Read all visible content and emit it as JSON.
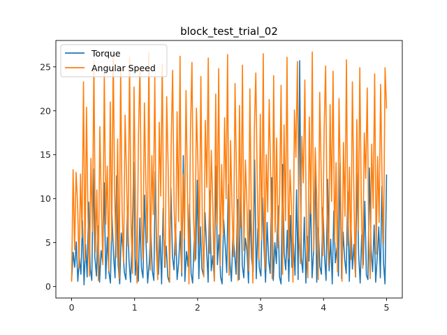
{
  "chart_data": {
    "type": "line",
    "title": "block_test_trial_02",
    "xlabel": "",
    "ylabel": "",
    "xlim": [
      -0.25,
      5.25
    ],
    "ylim": [
      -1.3,
      28.0
    ],
    "x_ticks": [
      0,
      1,
      2,
      3,
      4,
      5
    ],
    "y_ticks": [
      0,
      5,
      10,
      15,
      20,
      25
    ],
    "grid": false,
    "legend_position": "top-left",
    "x_start": 0,
    "x_end": 5,
    "series": [
      {
        "name": "Torque",
        "color": "#1f77b4",
        "values": [
          0.8,
          3.9,
          2.2,
          5.1,
          0.6,
          3.2,
          1.4,
          7.5,
          0.2,
          4.8,
          1.1,
          9.6,
          2.0,
          0.7,
          13.4,
          3.3,
          1.2,
          6.9,
          0.5,
          4.1,
          2.8,
          11.8,
          0.9,
          5.6,
          1.7,
          0.4,
          8.2,
          3.6,
          1.0,
          12.6,
          2.4,
          0.3,
          6.1,
          4.4,
          1.6,
          0.8,
          9.1,
          2.9,
          0.5,
          5.3,
          14.2,
          1.3,
          3.7,
          0.6,
          7.8,
          2.1,
          1.0,
          10.4,
          4.9,
          0.4,
          2.6,
          6.5,
          1.8,
          0.7,
          13.1,
          3.0,
          1.4,
          5.8,
          0.3,
          8.9,
          2.2,
          4.6,
          1.1,
          0.5,
          11.2,
          3.4,
          1.9,
          7.1,
          0.8,
          2.7,
          6.3,
          1.2,
          14.9,
          0.6,
          4.0,
          2.3,
          9.4,
          1.5,
          0.4,
          5.2,
          3.1,
          12.1,
          0.9,
          6.8,
          2.0,
          1.3,
          8.4,
          4.3,
          0.5,
          10.9,
          1.8,
          3.5,
          0.7,
          13.7,
          2.5,
          5.9,
          1.1,
          0.3,
          7.6,
          4.7,
          1.6,
          11.6,
          2.8,
          0.6,
          6.0,
          3.9,
          1.4,
          9.9,
          0.8,
          12.8,
          2.4,
          1.0,
          5.5,
          4.2,
          0.4,
          8.7,
          3.2,
          1.7,
          14.4,
          0.9,
          6.6,
          2.1,
          1.2,
          10.1,
          4.5,
          0.5,
          7.3,
          3.0,
          1.5,
          12.4,
          0.7,
          5.0,
          2.6,
          9.2,
          1.1,
          0.3,
          13.9,
          3.8,
          1.9,
          6.4,
          0.6,
          8.1,
          2.2,
          4.9,
          1.3,
          11.0,
          0.8,
          25.7,
          3.3,
          1.6,
          7.9,
          0.4,
          5.7,
          2.9,
          10.6,
          1.0,
          4.1,
          13.2,
          0.5,
          6.7,
          2.3,
          1.4,
          9.0,
          3.6,
          0.7,
          12.2,
          1.8,
          5.4,
          0.3,
          8.6,
          2.7,
          4.4,
          1.2,
          14.1,
          0.9,
          6.2,
          3.1,
          1.5,
          10.8,
          0.6,
          7.4,
          2.0,
          4.8,
          1.1,
          12.9,
          3.7,
          0.4,
          5.9,
          2.5,
          9.7,
          1.3,
          0.8,
          13.5,
          4.2,
          1.7,
          7.0,
          0.5,
          3.4,
          6.8,
          1.0,
          11.4,
          2.8,
          0.3,
          12.7
        ]
      },
      {
        "name": "Angular Speed",
        "color": "#ff7f0e",
        "values": [
          0.6,
          13.3,
          4.2,
          13.0,
          9.5,
          2.1,
          12.8,
          5.6,
          23.3,
          3.0,
          20.4,
          8.1,
          1.2,
          14.6,
          6.3,
          25.7,
          3.9,
          11.0,
          0.7,
          18.2,
          9.3,
          2.5,
          24.4,
          7.1,
          13.7,
          1.8,
          21.0,
          5.2,
          26.3,
          10.4,
          3.3,
          16.8,
          0.9,
          24.9,
          8.6,
          2.7,
          19.5,
          12.1,
          4.6,
          26.1,
          6.9,
          1.5,
          22.7,
          9.8,
          0.4,
          17.3,
          25.0,
          7.7,
          3.1,
          20.9,
          11.6,
          5.0,
          26.6,
          1.9,
          14.9,
          8.2,
          23.8,
          4.3,
          0.8,
          18.7,
          10.3,
          25.3,
          6.1,
          2.2,
          21.6,
          13.4,
          0.5,
          16.1,
          24.6,
          9.0,
          3.6,
          19.9,
          7.4,
          26.2,
          1.6,
          12.8,
          5.5,
          22.3,
          10.7,
          0.3,
          17.6,
          25.5,
          8.4,
          2.9,
          20.3,
          14.2,
          4.8,
          23.9,
          6.5,
          1.1,
          18.9,
          11.3,
          26.0,
          3.8,
          15.5,
          9.6,
          0.6,
          21.9,
          7.0,
          24.8,
          2.4,
          13.9,
          5.9,
          19.2,
          10.0,
          26.4,
          1.3,
          16.6,
          8.8,
          3.4,
          23.1,
          12.5,
          0.7,
          20.6,
          6.7,
          25.2,
          4.1,
          14.4,
          9.3,
          1.8,
          22.5,
          7.8,
          0.4,
          17.9,
          24.3,
          11.1,
          3.0,
          19.6,
          5.3,
          26.5,
          2.0,
          15.0,
          8.5,
          21.3,
          12.7,
          0.9,
          24.0,
          6.2,
          16.9,
          4.4,
          10.5,
          22.9,
          1.4,
          18.4,
          7.5,
          26.1,
          3.2,
          13.3,
          9.1,
          0.5,
          20.1,
          14.7,
          25.6,
          5.7,
          2.6,
          17.1,
          11.8,
          23.5,
          6.9,
          1.0,
          19.3,
          8.3,
          26.7,
          4.0,
          15.8,
          10.2,
          0.8,
          22.1,
          12.9,
          3.5,
          18.0,
          25.1,
          7.2,
          2.3,
          20.7,
          9.7,
          24.5,
          5.1,
          14.1,
          1.7,
          21.4,
          11.5,
          0.6,
          16.4,
          8.0,
          25.8,
          4.7,
          13.6,
          3.1,
          23.3,
          10.8,
          1.2,
          19.0,
          6.4,
          24.9,
          9.4,
          2.1,
          17.5,
          12.3,
          22.6,
          5.6,
          0.9,
          16.2,
          8.9,
          24.2,
          3.7,
          14.8,
          7.3,
          23.0,
          11.9,
          4.9,
          24.9,
          20.3
        ]
      }
    ]
  }
}
